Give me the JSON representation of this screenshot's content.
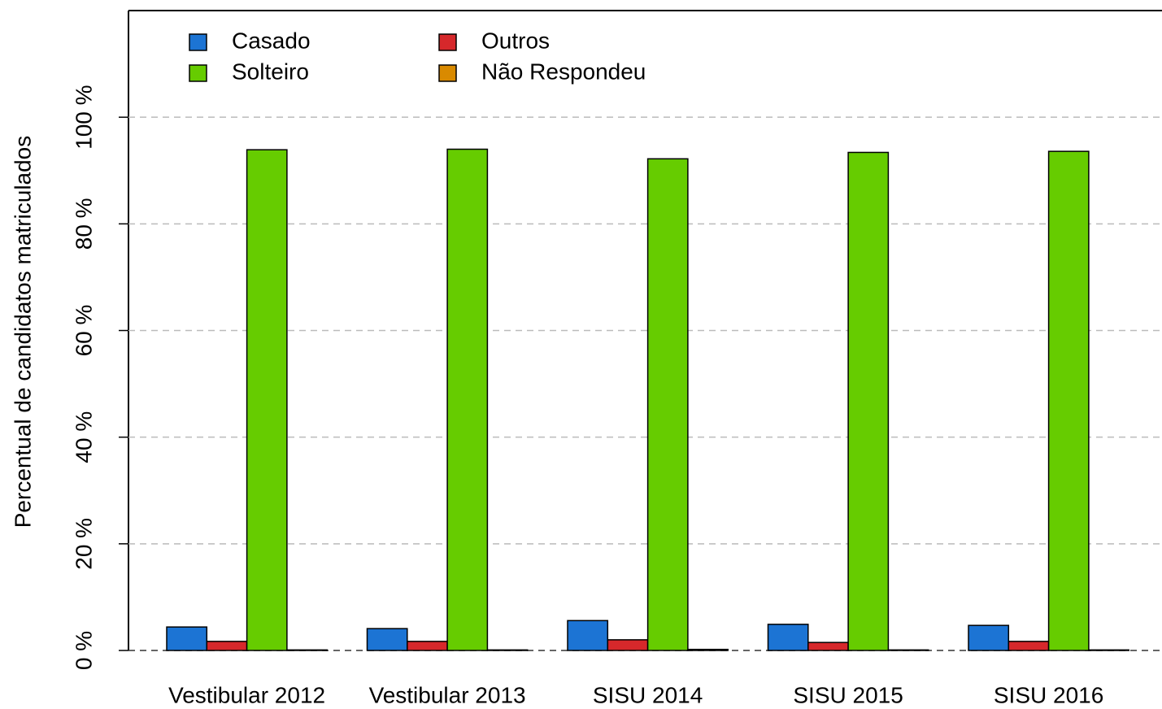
{
  "chart_data": {
    "type": "bar",
    "ylabel": "Percentual de candidatos matriculados",
    "categories": [
      "Vestibular 2012",
      "Vestibular 2013",
      "SISU 2014",
      "SISU 2015",
      "SISU 2016"
    ],
    "series": [
      {
        "name": "Casado",
        "color": "#1c74d4",
        "values": [
          4.4,
          4.1,
          5.6,
          4.9,
          4.7
        ]
      },
      {
        "name": "Outros",
        "color": "#d6282b",
        "values": [
          1.7,
          1.7,
          2.0,
          1.5,
          1.7
        ]
      },
      {
        "name": "Solteiro",
        "color": "#66cc00",
        "values": [
          93.9,
          94.0,
          92.2,
          93.4,
          93.6
        ]
      },
      {
        "name": "Não Respondeu",
        "color": "#d98a00",
        "values": [
          0.1,
          0.1,
          0.2,
          0.1,
          0.1
        ]
      }
    ],
    "ylim": [
      0,
      120
    ],
    "yticks": [
      {
        "value": 0,
        "label": "0 %"
      },
      {
        "value": 20,
        "label": "20 %"
      },
      {
        "value": 40,
        "label": "40 %"
      },
      {
        "value": 60,
        "label": "60 %"
      },
      {
        "value": 80,
        "label": "80 %"
      },
      {
        "value": 100,
        "label": "100 %"
      }
    ],
    "grid": true,
    "legend": "top-left"
  }
}
